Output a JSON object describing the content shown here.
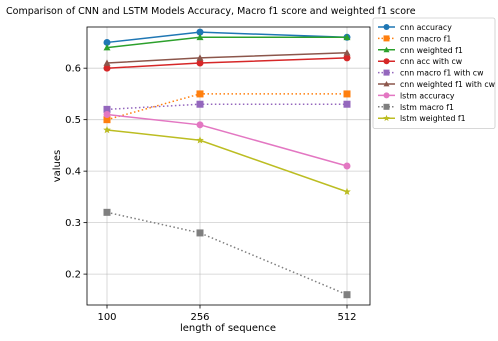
{
  "chart_data": {
    "type": "line",
    "title": "Comparison of CNN and LSTM Models Accuracy, Macro f1 score and weighted f1 score",
    "xlabel": "length of sequence",
    "ylabel": "values",
    "x": [
      "100",
      "256",
      "512"
    ],
    "xlim": [
      100,
      512
    ],
    "ylim": [
      0.14,
      0.68
    ],
    "yticks": [
      "0.2",
      "0.3",
      "0.4",
      "0.5",
      "0.6"
    ],
    "ytick_values": [
      0.2,
      0.3,
      0.4,
      0.5,
      0.6
    ],
    "grid": true,
    "legend_position": "outside right, top",
    "series": [
      {
        "name": "cnn accuracy",
        "values": [
          0.65,
          0.67,
          0.66
        ],
        "color": "#1f77b4",
        "marker": "circle",
        "linestyle": "solid"
      },
      {
        "name": "cnn macro f1",
        "values": [
          0.5,
          0.55,
          0.55
        ],
        "color": "#ff7f0e",
        "marker": "square",
        "linestyle": "dotted"
      },
      {
        "name": "cnn weighted f1",
        "values": [
          0.64,
          0.66,
          0.66
        ],
        "color": "#2ca02c",
        "marker": "triangle",
        "linestyle": "solid"
      },
      {
        "name": "cnn acc with cw",
        "values": [
          0.6,
          0.61,
          0.62
        ],
        "color": "#d62728",
        "marker": "circle",
        "linestyle": "solid"
      },
      {
        "name": "cnn macro f1 with cw",
        "values": [
          0.52,
          0.53,
          0.53
        ],
        "color": "#9467bd",
        "marker": "square",
        "linestyle": "dotted"
      },
      {
        "name": "cnn weighted f1 with cw",
        "values": [
          0.61,
          0.62,
          0.63
        ],
        "color": "#8c564b",
        "marker": "triangle",
        "linestyle": "solid"
      },
      {
        "name": "lstm accuracy",
        "values": [
          0.51,
          0.49,
          0.41
        ],
        "color": "#e377c2",
        "marker": "circle",
        "linestyle": "solid"
      },
      {
        "name": "lstm macro f1",
        "values": [
          0.32,
          0.28,
          0.16
        ],
        "color": "#7f7f7f",
        "marker": "square",
        "linestyle": "dotted"
      },
      {
        "name": "lstm weighted f1",
        "values": [
          0.48,
          0.46,
          0.36
        ],
        "color": "#bcbd22",
        "marker": "star",
        "linestyle": "solid"
      }
    ]
  }
}
